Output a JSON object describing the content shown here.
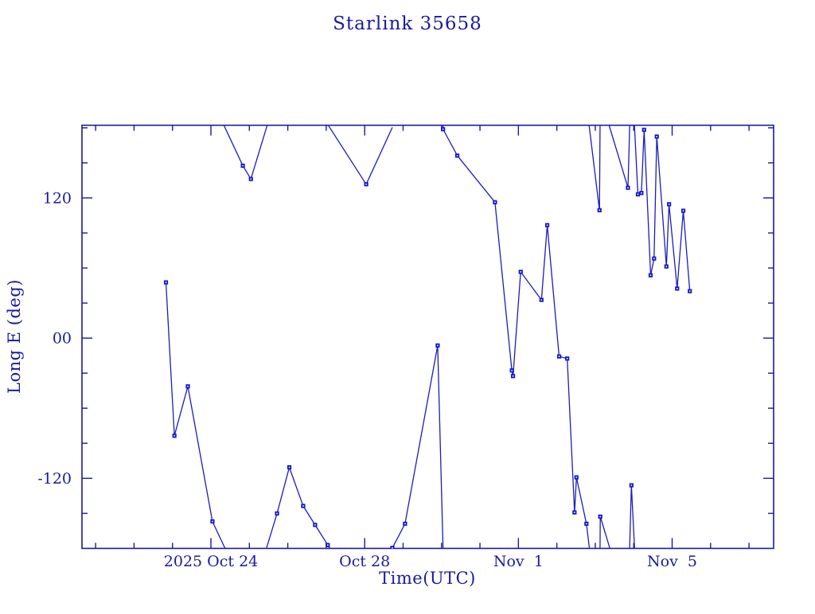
{
  "page": {
    "background": "#ffffff"
  },
  "chart_data": {
    "type": "line",
    "title": "Starlink 35658",
    "xlabel": "Time(UTC)",
    "ylabel": "Long E (deg)",
    "marker_shape": "square",
    "grid": false,
    "legend": null,
    "colors": {
      "ink": "#1a1a9e",
      "line": "#1c1cbe",
      "marker": "#1414cc",
      "marker_center": "#ffffff"
    },
    "x_axis": {
      "unit": "days relative to 2025 Oct 24 00:00 UTC",
      "range_days": [
        -3.355,
        14.64
      ],
      "minor_step_days": 1,
      "major_ticks": [
        {
          "t": 0,
          "label": "2025 Oct 24"
        },
        {
          "t": 4,
          "label": "Oct 28"
        },
        {
          "t": 8,
          "label": "Nov  1"
        },
        {
          "t": 12,
          "label": "Nov  5"
        }
      ]
    },
    "y_axis": {
      "unit": "degrees East longitude",
      "range": [
        -180,
        182.2
      ],
      "minor_step": 30,
      "major_ticks": [
        {
          "v": 120,
          "label": "120"
        },
        {
          "v": 0,
          "label": "00"
        },
        {
          "v": -120,
          "label": "-120"
        }
      ]
    },
    "wrap_at_degrees": 180,
    "points": [
      [
        -1.17,
        47.7
      ],
      [
        -0.95,
        -83.6
      ],
      [
        -0.6,
        -41.3
      ],
      [
        0.04,
        -156.9
      ],
      [
        0.83,
        147.6
      ],
      [
        1.04,
        136.2
      ],
      [
        1.72,
        -150.1
      ],
      [
        2.04,
        -110.6
      ],
      [
        2.4,
        -143.7
      ],
      [
        2.71,
        -159.9
      ],
      [
        3.04,
        -177.1
      ],
      [
        4.04,
        131.7
      ],
      [
        4.72,
        -179.6
      ],
      [
        5.05,
        -158.9
      ],
      [
        5.9,
        -6.3
      ],
      [
        6.04,
        178.8
      ],
      [
        6.41,
        156.2
      ],
      [
        7.39,
        116.3
      ],
      [
        7.83,
        -27.7
      ],
      [
        7.86,
        -32.5
      ],
      [
        8.06,
        56.7
      ],
      [
        8.6,
        32.7
      ],
      [
        8.75,
        96.7
      ],
      [
        9.06,
        -15.7
      ],
      [
        9.27,
        -17.5
      ],
      [
        9.46,
        -149.2
      ],
      [
        9.51,
        -119.2
      ],
      [
        9.77,
        -158.9
      ],
      [
        10.11,
        109.5
      ],
      [
        10.13,
        -152.8
      ],
      [
        10.85,
        128.7
      ],
      [
        10.94,
        -126.0
      ],
      [
        11.11,
        123.1
      ],
      [
        11.2,
        124.2
      ],
      [
        11.27,
        178.3
      ],
      [
        11.44,
        53.8
      ],
      [
        11.53,
        68.1
      ],
      [
        11.6,
        172.5
      ],
      [
        11.85,
        61.3
      ],
      [
        11.92,
        114.6
      ],
      [
        12.13,
        42.4
      ],
      [
        12.29,
        109.0
      ],
      [
        12.46,
        40.2
      ]
    ]
  }
}
